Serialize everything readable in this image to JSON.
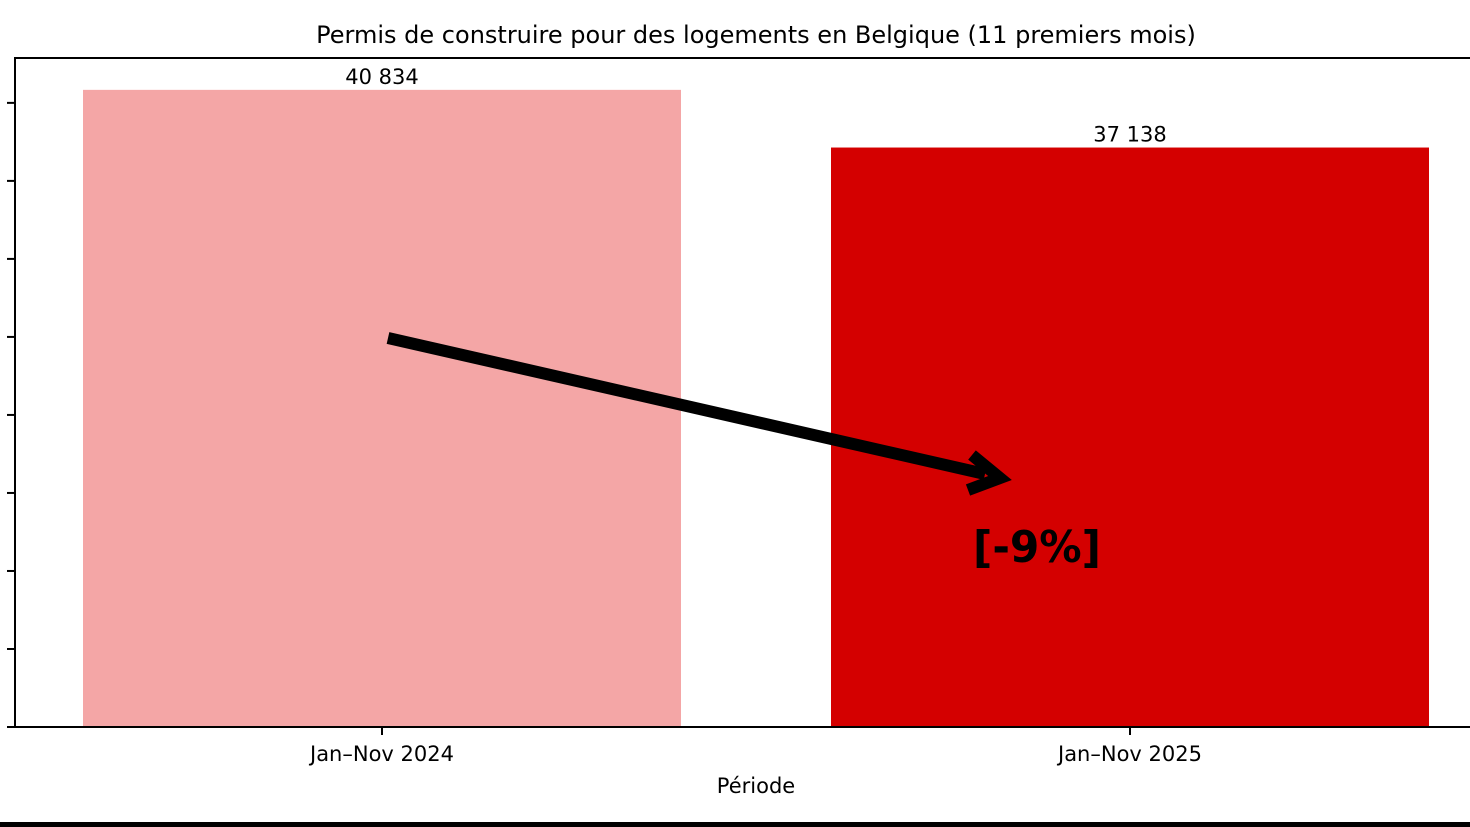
{
  "chart_data": {
    "type": "bar",
    "title": "Permis de construire pour des logements en Belgique (11 premiers mois)",
    "xlabel": "Période",
    "ylabel": "",
    "categories": [
      "Jan–Nov 2024",
      "Jan–Nov 2025"
    ],
    "values": [
      40834,
      37138
    ],
    "data_labels": [
      "40 834",
      "37 138"
    ],
    "colors": [
      "#f4a6a6",
      "#d40000"
    ],
    "ylim": [
      0,
      42876
    ],
    "yticks": [
      0,
      5000,
      10000,
      15000,
      20000,
      25000,
      30000,
      35000,
      40000
    ],
    "ytick_labels_visible": false,
    "grid": false,
    "annotation": {
      "text": "[-9%]",
      "arrow_from": "Jan–Nov 2024",
      "arrow_to": "Jan–Nov 2025"
    }
  }
}
